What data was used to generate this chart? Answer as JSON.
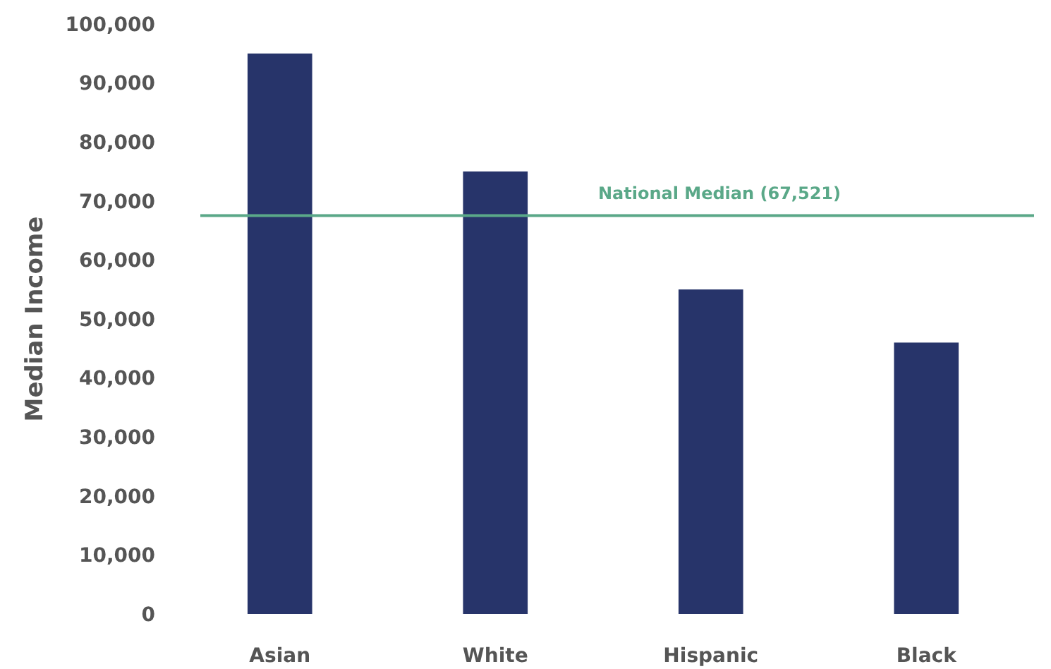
{
  "chart_data": {
    "type": "bar",
    "ylabel": "Median Income",
    "categories": [
      "Asian",
      "White",
      "Hispanic",
      "Black"
    ],
    "values": [
      95000,
      75000,
      55000,
      46000
    ],
    "color": "#27346a",
    "ylim": [
      0,
      100000
    ],
    "yticks": [
      {
        "value": 0,
        "label": "0"
      },
      {
        "value": 10000,
        "label": "10,000"
      },
      {
        "value": 20000,
        "label": "20,000"
      },
      {
        "value": 30000,
        "label": "30,000"
      },
      {
        "value": 40000,
        "label": "40,000"
      },
      {
        "value": 50000,
        "label": "50,000"
      },
      {
        "value": 60000,
        "label": "60,000"
      },
      {
        "value": 70000,
        "label": "70,000"
      },
      {
        "value": 80000,
        "label": "80,000"
      },
      {
        "value": 90000,
        "label": "90,000"
      },
      {
        "value": 100000,
        "label": "100,000"
      }
    ],
    "grid": false,
    "ref_lines": [
      {
        "axis": "y",
        "value": 67521,
        "label": "National Median (67,521)",
        "color": "#5aa888"
      }
    ]
  }
}
